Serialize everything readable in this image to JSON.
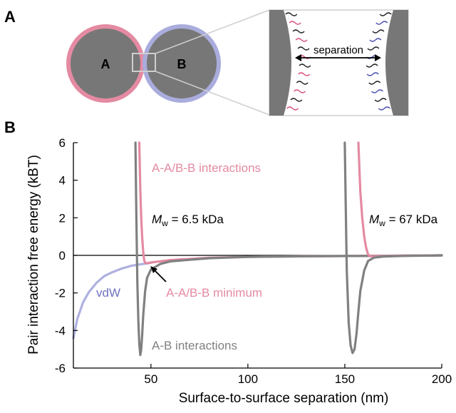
{
  "panel_a": {
    "panel_label": "A",
    "particle_a_label": "A",
    "particle_b_label": "B",
    "separation_label": "separation",
    "colors": {
      "particle_fill": "#777777",
      "ring_a": "#e48aa2",
      "ring_b": "#a9acdc",
      "chain_black": "#222222",
      "chain_pink": "#d9507a",
      "chain_blue": "#4a4fb0"
    }
  },
  "panel_b": {
    "panel_label": "B",
    "annotations": {
      "aa_interactions": "A-A/B-B interactions",
      "aa_minimum": "A-A/B-B minimum",
      "ab_interactions": "A-B interactions",
      "vdw": "vdW",
      "mw_low_prefix": "M",
      "mw_low_sub": "w",
      "mw_low_value": " = 6.5 kDa",
      "mw_high_prefix": "M",
      "mw_high_sub": "w",
      "mw_high_value": " = 67 kDa"
    }
  },
  "chart_data": {
    "type": "line",
    "xlabel": "Surface-to-surface separation (nm)",
    "ylabel": "Pair interaction free energy (kBT)",
    "xlim": [
      10,
      200
    ],
    "ylim": [
      -6,
      6
    ],
    "x_ticks": [
      50,
      100,
      150,
      200
    ],
    "y_ticks": [
      -6,
      -4,
      -2,
      0,
      2,
      4,
      6
    ],
    "zero_line": true,
    "colors": {
      "aa": "#e48aa2",
      "ab": "#808080",
      "vdw": "#aeb1df",
      "zero": "#000000"
    },
    "series": [
      {
        "key": "vdw",
        "color": "#aeb1df",
        "x": [
          10,
          12,
          15,
          18,
          22,
          26,
          30,
          35,
          40,
          45,
          50
        ],
        "y": [
          -4.4,
          -3.4,
          -2.5,
          -1.95,
          -1.45,
          -1.1,
          -0.9,
          -0.7,
          -0.55,
          -0.47,
          -0.4
        ]
      },
      {
        "key": "aa_low",
        "color": "#e48aa2",
        "x": [
          44,
          44.5,
          45,
          45.5,
          46,
          46.5,
          47,
          48,
          50,
          60,
          80,
          100,
          130,
          160,
          200
        ],
        "y": [
          6,
          3.5,
          2.0,
          0.9,
          0.2,
          -0.25,
          -0.4,
          -0.42,
          -0.38,
          -0.25,
          -0.13,
          -0.08,
          -0.05,
          -0.03,
          0.0
        ]
      },
      {
        "key": "ab_low",
        "color": "#808080",
        "x": [
          42,
          42.5,
          43,
          43.5,
          44,
          44.5,
          45,
          45.5,
          46,
          47,
          48,
          50,
          55,
          60,
          80,
          100,
          130,
          160,
          200
        ],
        "y": [
          6,
          2.0,
          -1.5,
          -3.5,
          -4.7,
          -5.3,
          -5.0,
          -4.2,
          -3.2,
          -1.9,
          -1.2,
          -0.75,
          -0.45,
          -0.32,
          -0.15,
          -0.08,
          -0.05,
          -0.03,
          0.0
        ]
      },
      {
        "key": "aa_high",
        "color": "#e48aa2",
        "x": [
          157,
          158,
          159,
          160,
          161,
          162,
          163,
          165,
          170,
          180,
          200
        ],
        "y": [
          6,
          3.4,
          2.0,
          1.0,
          0.4,
          0.05,
          -0.05,
          -0.05,
          -0.04,
          -0.02,
          0.0
        ]
      },
      {
        "key": "ab_high",
        "color": "#808080",
        "x": [
          150,
          150.5,
          151,
          152,
          153,
          154,
          155,
          156,
          157,
          158,
          160,
          162,
          165,
          170,
          180,
          200
        ],
        "y": [
          6,
          2.5,
          -0.8,
          -3.6,
          -4.8,
          -5.2,
          -5.0,
          -4.2,
          -3.0,
          -1.9,
          -0.8,
          -0.3,
          -0.12,
          -0.06,
          -0.03,
          0.0
        ]
      }
    ]
  }
}
